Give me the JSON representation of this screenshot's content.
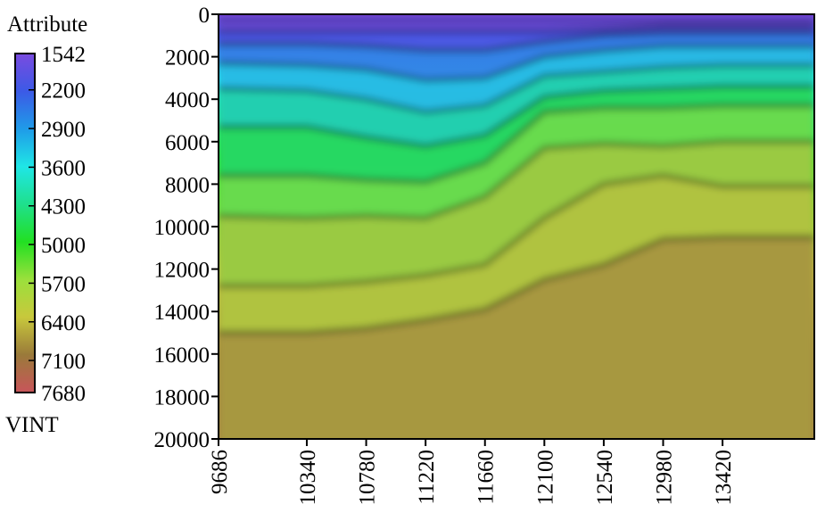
{
  "chart_data": {
    "type": "heatmap",
    "title": "",
    "colorbar": {
      "title": "Attribute",
      "label": "VINT",
      "ticks": [
        1542,
        2200,
        2900,
        3600,
        4300,
        5000,
        5700,
        6400,
        7100,
        7680
      ],
      "range": [
        1542,
        7680
      ]
    },
    "x_axis": {
      "label": "",
      "ticks": [
        9686,
        10340,
        10780,
        11220,
        11660,
        12100,
        12540,
        12980,
        13420
      ],
      "range": [
        9686,
        14100
      ]
    },
    "y_axis": {
      "label": "",
      "ticks": [
        0,
        2000,
        4000,
        6000,
        8000,
        10000,
        12000,
        14000,
        16000,
        18000,
        20000
      ],
      "range": [
        0,
        20000
      ],
      "inverted": true
    },
    "colormap": [
      "#7a4be0",
      "#3c5ae6",
      "#1f9be8",
      "#1fe6e6",
      "#1fe08c",
      "#22e022",
      "#9be03c",
      "#c8c83c",
      "#9a7a3a",
      "#c8555a"
    ],
    "layers": [
      {
        "x": [
          9686,
          10340,
          10780,
          11220,
          11660,
          12100,
          12540,
          12980,
          13420,
          14100
        ],
        "depth": [
          300,
          300,
          300,
          300,
          300,
          300,
          300,
          300,
          300,
          300
        ],
        "value": 1542
      },
      {
        "x": [
          9686,
          10340,
          10780,
          11220,
          11660,
          12100,
          12540,
          12980,
          13420,
          14100
        ],
        "depth": [
          800,
          800,
          800,
          800,
          800,
          800,
          700,
          600,
          600,
          600
        ],
        "value": 2200
      },
      {
        "x": [
          9686,
          10340,
          10780,
          11220,
          11660,
          12100,
          12540,
          12980,
          13420,
          14100
        ],
        "depth": [
          1400,
          1400,
          1500,
          1700,
          1700,
          1300,
          1000,
          900,
          900,
          900
        ],
        "value": 2900
      },
      {
        "x": [
          9686,
          10340,
          10780,
          11220,
          11660,
          12100,
          12540,
          12980,
          13420,
          14100
        ],
        "depth": [
          2300,
          2400,
          2600,
          3100,
          3000,
          2000,
          1700,
          1500,
          1500,
          1500
        ],
        "value": 3600
      },
      {
        "x": [
          9686,
          10340,
          10780,
          11220,
          11660,
          12100,
          12540,
          12980,
          13420,
          14100
        ],
        "depth": [
          3500,
          3600,
          4000,
          4600,
          4300,
          2900,
          2700,
          2500,
          2400,
          2400
        ],
        "value": 4300
      },
      {
        "x": [
          9686,
          10340,
          10780,
          11220,
          11660,
          12100,
          12540,
          12980,
          13420,
          14100
        ],
        "depth": [
          5300,
          5300,
          5800,
          6200,
          5700,
          3900,
          3600,
          3500,
          3400,
          3400
        ],
        "value": 5000
      },
      {
        "x": [
          9686,
          10340,
          10780,
          11220,
          11660,
          12100,
          12540,
          12980,
          13420,
          14100
        ],
        "depth": [
          7600,
          7600,
          7800,
          7900,
          7000,
          4600,
          4400,
          4400,
          4300,
          4300
        ],
        "value": 5700
      },
      {
        "x": [
          9686,
          10340,
          10780,
          11220,
          11660,
          12100,
          12540,
          12980,
          13420,
          14100
        ],
        "depth": [
          9500,
          9600,
          9500,
          9600,
          8600,
          6300,
          6100,
          6200,
          6000,
          6000
        ],
        "value": 6400
      },
      {
        "x": [
          9686,
          10340,
          10780,
          11220,
          11660,
          12100,
          12540,
          12980,
          13420,
          14100
        ],
        "depth": [
          12800,
          12800,
          12600,
          12300,
          11800,
          9600,
          8000,
          7600,
          8100,
          8100
        ],
        "value": 6400
      },
      {
        "x": [
          9686,
          10340,
          10780,
          11220,
          11660,
          12100,
          12540,
          12980,
          13420,
          14100
        ],
        "depth": [
          15000,
          15000,
          14800,
          14400,
          13900,
          12500,
          11800,
          10600,
          10500,
          10500
        ],
        "value": 7100
      }
    ]
  }
}
